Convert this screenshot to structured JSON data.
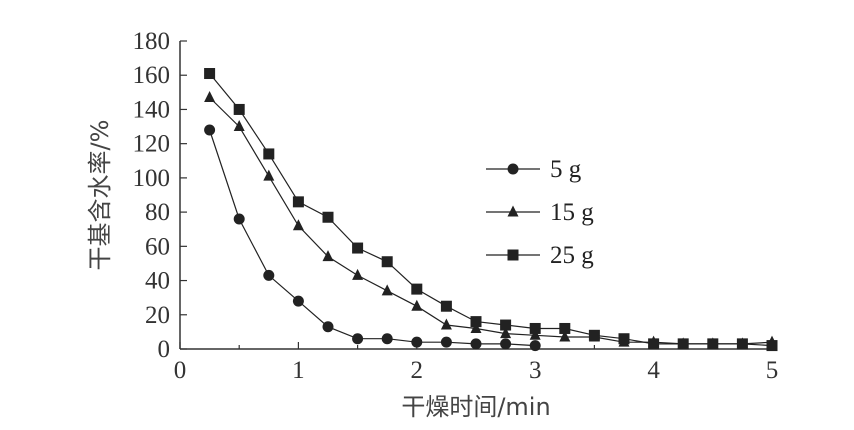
{
  "chart_data": {
    "type": "line",
    "title": "",
    "xlabel": "干燥时间/min",
    "ylabel": "干基含水率/%",
    "xlim": [
      0,
      5
    ],
    "ylim": [
      0,
      180
    ],
    "xticks": [
      0,
      1,
      2,
      3,
      4,
      5
    ],
    "yticks": [
      0,
      20,
      40,
      60,
      80,
      100,
      120,
      140,
      160,
      180
    ],
    "grid": false,
    "legend_position": "center-right",
    "series": [
      {
        "name": "5 g",
        "marker": "circle",
        "color": "#222222",
        "x": [
          0.25,
          0.5,
          0.75,
          1.0,
          1.25,
          1.5,
          1.75,
          2.0,
          2.25,
          2.5,
          2.75,
          3.0
        ],
        "y": [
          128,
          76,
          43,
          28,
          13,
          6,
          6,
          4,
          4,
          3,
          3,
          2
        ]
      },
      {
        "name": "15 g",
        "marker": "triangle",
        "color": "#222222",
        "x": [
          0.25,
          0.5,
          0.75,
          1.0,
          1.25,
          1.5,
          1.75,
          2.0,
          2.25,
          2.5,
          2.75,
          3.0,
          3.25,
          3.5,
          3.75,
          4.0,
          4.25,
          4.5,
          4.75,
          5.0
        ],
        "y": [
          147,
          130,
          101,
          72,
          54,
          43,
          34,
          25,
          14,
          12,
          9,
          8,
          7,
          7,
          4,
          4,
          3,
          3,
          3,
          4
        ]
      },
      {
        "name": "25 g",
        "marker": "square",
        "color": "#222222",
        "x": [
          0.25,
          0.5,
          0.75,
          1.0,
          1.25,
          1.5,
          1.75,
          2.0,
          2.25,
          2.5,
          2.75,
          3.0,
          3.25,
          3.5,
          3.75,
          4.0,
          4.25,
          4.5,
          4.75,
          5.0
        ],
        "y": [
          161,
          140,
          114,
          86,
          77,
          59,
          51,
          35,
          25,
          16,
          14,
          12,
          12,
          8,
          6,
          3,
          3,
          3,
          3,
          2
        ]
      }
    ]
  }
}
